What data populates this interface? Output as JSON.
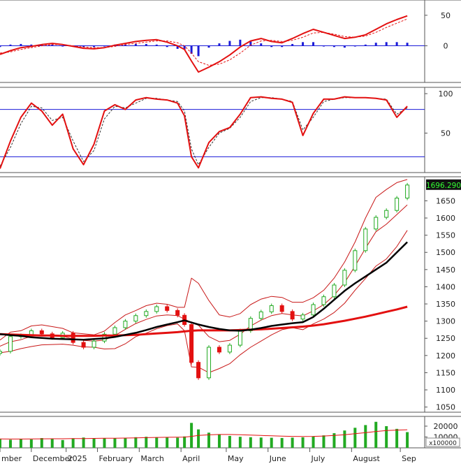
{
  "colors": {
    "background": "#ffffff",
    "frame": "#555555",
    "macd_line": "#e31010",
    "signal_line": "#e31010",
    "histogram": "#1a1ad8",
    "stoch_k": "#e31010",
    "stoch_bands": "#1a1ad8",
    "candle_up": "#22aa22",
    "candle_down": "#e31010",
    "bollinger": "#c81818",
    "ma_fast": "#000000",
    "ma_slow": "#e31010",
    "volume_bar": "#22aa22",
    "volume_ma": "#e31010",
    "price_label_bg": "#111111",
    "price_label_text": "#33ff33"
  },
  "chart_data": [
    {
      "type": "line",
      "panel": "macd",
      "yticks": [
        50,
        0
      ],
      "ylim": [
        -60,
        75
      ],
      "x": [
        0,
        3,
        6,
        9,
        12,
        15,
        18,
        21,
        24,
        27,
        30,
        33,
        36,
        39,
        42,
        45,
        48,
        51,
        53,
        55,
        57,
        60,
        63,
        66,
        69,
        72,
        75,
        78,
        81,
        84,
        87,
        90,
        93,
        96,
        99,
        102,
        105,
        108,
        111,
        114,
        117
      ],
      "series": [
        {
          "name": "",
          "role": "macd",
          "values": [
            -14,
            -8,
            -3,
            -1,
            2,
            4,
            2,
            -1,
            -4,
            -5,
            -3,
            1,
            4,
            7,
            9,
            10,
            6,
            0,
            -6,
            -25,
            -43,
            -35,
            -26,
            -15,
            -2,
            8,
            12,
            7,
            5,
            12,
            20,
            27,
            22,
            17,
            12,
            14,
            18,
            27,
            36,
            43,
            49
          ]
        },
        {
          "name": "",
          "role": "signal",
          "values": [
            -12,
            -10,
            -6,
            -3,
            0,
            2,
            2,
            0,
            -2,
            -3,
            -3,
            -1,
            2,
            4,
            6,
            8,
            8,
            5,
            0,
            -12,
            -26,
            -32,
            -30,
            -23,
            -12,
            1,
            8,
            9,
            7,
            9,
            14,
            21,
            22,
            19,
            15,
            14,
            16,
            22,
            30,
            37,
            44
          ]
        },
        {
          "name": "",
          "role": "histogram",
          "values": [
            -2,
            2,
            3,
            2,
            2,
            2,
            0,
            -1,
            -2,
            -2,
            0,
            2,
            2,
            3,
            3,
            2,
            -2,
            -5,
            -6,
            -13,
            -17,
            -3,
            4,
            8,
            10,
            7,
            4,
            -2,
            -2,
            3,
            6,
            6,
            0,
            -2,
            -3,
            0,
            2,
            5,
            6,
            6,
            5
          ]
        }
      ]
    },
    {
      "type": "line",
      "panel": "stochastic",
      "yticks": [
        100,
        50
      ],
      "ylim": [
        0,
        108
      ],
      "bands": [
        80,
        20
      ],
      "x": [
        0,
        3,
        6,
        9,
        12,
        15,
        18,
        21,
        24,
        27,
        30,
        33,
        36,
        39,
        42,
        45,
        48,
        51,
        53,
        55,
        57,
        60,
        63,
        66,
        69,
        72,
        75,
        78,
        81,
        84,
        87,
        90,
        93,
        96,
        99,
        102,
        105,
        108,
        111,
        114,
        117
      ],
      "series": [
        {
          "name": "",
          "role": "k",
          "values": [
            5,
            40,
            70,
            88,
            78,
            60,
            74,
            30,
            10,
            36,
            78,
            86,
            80,
            92,
            95,
            93,
            92,
            88,
            72,
            20,
            6,
            38,
            52,
            57,
            74,
            95,
            96,
            94,
            93,
            89,
            47,
            75,
            93,
            93,
            96,
            95,
            95,
            94,
            92,
            70,
            84
          ]
        },
        {
          "name": "",
          "role": "d",
          "values": [
            8,
            32,
            62,
            84,
            82,
            66,
            70,
            40,
            14,
            28,
            68,
            84,
            82,
            88,
            94,
            94,
            92,
            90,
            78,
            30,
            10,
            32,
            50,
            56,
            70,
            90,
            95,
            95,
            93,
            90,
            54,
            70,
            90,
            93,
            95,
            95,
            95,
            94,
            93,
            74,
            82
          ]
        }
      ]
    },
    {
      "type": "candlestick",
      "panel": "price",
      "yticks": [
        1650,
        1600,
        1550,
        1500,
        1450,
        1400,
        1350,
        1300,
        1250,
        1200,
        1150,
        1100,
        1050
      ],
      "ylim": [
        1035,
        1720
      ],
      "last_price_label": "1696.290",
      "x_tick_labels": [
        "mber",
        "December",
        "2025",
        "February",
        "March",
        "April",
        "May",
        "June",
        "July",
        "August",
        "Sep"
      ],
      "x_tick_positions": [
        0,
        9,
        19,
        28,
        40,
        52,
        65,
        77,
        89,
        101,
        115
      ],
      "x": [
        0,
        3,
        6,
        9,
        12,
        15,
        18,
        21,
        24,
        27,
        30,
        33,
        36,
        39,
        42,
        45,
        48,
        51,
        53,
        55,
        57,
        60,
        63,
        66,
        69,
        72,
        75,
        78,
        81,
        84,
        87,
        90,
        93,
        96,
        99,
        102,
        105,
        108,
        111,
        114,
        117
      ],
      "series": [
        {
          "name": "",
          "role": "close",
          "values": [
            1212,
            1255,
            1258,
            1272,
            1263,
            1252,
            1265,
            1238,
            1224,
            1242,
            1262,
            1281,
            1300,
            1316,
            1328,
            1342,
            1331,
            1317,
            1290,
            1180,
            1135,
            1224,
            1210,
            1230,
            1272,
            1308,
            1327,
            1345,
            1328,
            1306,
            1318,
            1348,
            1371,
            1405,
            1448,
            1505,
            1568,
            1602,
            1622,
            1658,
            1696
          ]
        },
        {
          "name": "",
          "role": "bollinger_upper",
          "values": [
            1245,
            1268,
            1272,
            1286,
            1289,
            1284,
            1279,
            1266,
            1263,
            1260,
            1271,
            1296,
            1318,
            1331,
            1345,
            1352,
            1349,
            1340,
            1340,
            1425,
            1410,
            1360,
            1318,
            1312,
            1322,
            1348,
            1364,
            1372,
            1369,
            1355,
            1355,
            1368,
            1390,
            1425,
            1472,
            1530,
            1600,
            1660,
            1683,
            1703,
            1712
          ]
        },
        {
          "name": "",
          "role": "bollinger_middle",
          "values": [
            1227,
            1240,
            1246,
            1256,
            1260,
            1258,
            1256,
            1248,
            1244,
            1242,
            1245,
            1258,
            1276,
            1293,
            1305,
            1315,
            1318,
            1316,
            1306,
            1296,
            1288,
            1255,
            1240,
            1244,
            1262,
            1286,
            1303,
            1316,
            1322,
            1318,
            1315,
            1330,
            1348,
            1375,
            1412,
            1460,
            1512,
            1560,
            1582,
            1610,
            1638
          ]
        },
        {
          "name": "",
          "role": "bollinger_lower",
          "values": [
            1208,
            1212,
            1220,
            1226,
            1231,
            1232,
            1233,
            1230,
            1225,
            1224,
            1219,
            1220,
            1234,
            1255,
            1265,
            1278,
            1287,
            1292,
            1272,
            1167,
            1166,
            1150,
            1162,
            1176,
            1202,
            1224,
            1242,
            1260,
            1275,
            1281,
            1275,
            1292,
            1306,
            1325,
            1352,
            1390,
            1424,
            1460,
            1481,
            1517,
            1564
          ]
        },
        {
          "name": "",
          "role": "ma_fast",
          "values": [
            1262,
            1259,
            1257,
            1253,
            1251,
            1249,
            1248,
            1247,
            1246,
            1248,
            1250,
            1254,
            1260,
            1266,
            1274,
            1283,
            1290,
            1297,
            1302,
            1296,
            1290,
            1283,
            1277,
            1273,
            1272,
            1275,
            1280,
            1286,
            1290,
            1294,
            1297,
            1312,
            1336,
            1362,
            1388,
            1410,
            1430,
            1450,
            1470,
            1500,
            1530
          ]
        },
        {
          "name": "",
          "role": "ma_slow",
          "values": [
            1262,
            1261,
            1260,
            1259,
            1258,
            1258,
            1257,
            1257,
            1257,
            1257,
            1258,
            1258,
            1259,
            1260,
            1262,
            1264,
            1266,
            1268,
            1270,
            1272,
            1273,
            1273,
            1273,
            1273,
            1274,
            1275,
            1276,
            1278,
            1280,
            1282,
            1284,
            1287,
            1291,
            1296,
            1301,
            1307,
            1313,
            1320,
            1327,
            1334,
            1342
          ]
        }
      ]
    },
    {
      "type": "bar",
      "panel": "volume",
      "yticks": [
        20000,
        10000
      ],
      "ylim": [
        0,
        29000
      ],
      "unit_label": "x100000",
      "x": [
        0,
        3,
        6,
        9,
        12,
        15,
        18,
        21,
        24,
        27,
        30,
        33,
        36,
        39,
        42,
        45,
        48,
        51,
        53,
        55,
        57,
        60,
        63,
        66,
        69,
        72,
        75,
        78,
        81,
        84,
        87,
        90,
        93,
        96,
        99,
        102,
        105,
        108,
        111,
        114,
        117
      ],
      "series": [
        {
          "name": "",
          "role": "volume",
          "values": [
            8000,
            7500,
            8200,
            7800,
            9000,
            8500,
            7200,
            8800,
            9500,
            9000,
            8700,
            8900,
            9200,
            9800,
            10200,
            9800,
            9600,
            9400,
            10500,
            23000,
            17000,
            14000,
            12500,
            11000,
            10200,
            9800,
            9500,
            9300,
            9100,
            9400,
            9700,
            10500,
            11500,
            13500,
            16000,
            18500,
            21000,
            24000,
            20000,
            17500,
            14500
          ]
        },
        {
          "name": "",
          "role": "volume_ma",
          "values": [
            8200,
            8100,
            8100,
            8200,
            8300,
            8400,
            8400,
            8500,
            8600,
            8700,
            8800,
            8900,
            9000,
            9200,
            9400,
            9600,
            9700,
            9800,
            9900,
            10600,
            11400,
            12000,
            12300,
            12300,
            12100,
            11800,
            11400,
            11100,
            10800,
            10600,
            10500,
            10600,
            10900,
            11400,
            12100,
            13000,
            14000,
            15100,
            15900,
            16400,
            16700
          ]
        }
      ]
    }
  ]
}
